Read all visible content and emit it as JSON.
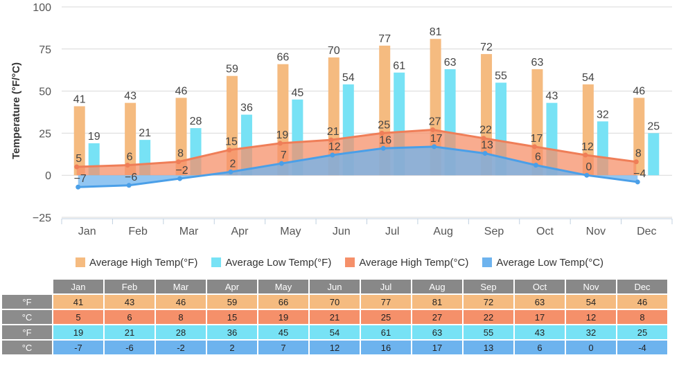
{
  "chart_data": {
    "type": "bar",
    "ylabel": "Temperature (°F/°C)",
    "ylim": [
      -25,
      100
    ],
    "yticks": [
      -25,
      0,
      25,
      50,
      75,
      100
    ],
    "categories": [
      "Jan",
      "Feb",
      "Mar",
      "Apr",
      "May",
      "Jun",
      "Jul",
      "Aug",
      "Sep",
      "Oct",
      "Nov",
      "Dec"
    ],
    "series": [
      {
        "name": "Average High Temp(°F)",
        "kind": "bar",
        "color": "#f5bb80",
        "label_color": "#444444",
        "values": [
          41,
          43,
          46,
          59,
          66,
          70,
          77,
          81,
          72,
          63,
          54,
          46
        ]
      },
      {
        "name": "Average Low Temp(°F)",
        "kind": "bar",
        "color": "#77e2f5",
        "label_color": "#444444",
        "values": [
          19,
          21,
          28,
          36,
          45,
          54,
          61,
          63,
          55,
          43,
          32,
          25
        ]
      },
      {
        "name": "Average High Temp(°C)",
        "kind": "area",
        "color": "#f5906a",
        "line_color": "#ef7e58",
        "label_color": "#444444",
        "values": [
          5,
          6,
          8,
          15,
          19,
          21,
          25,
          27,
          22,
          17,
          12,
          8
        ]
      },
      {
        "name": "Average Low Temp(°C)",
        "kind": "area",
        "color": "#6db3ee",
        "line_color": "#4a9fe8",
        "label_color": "#444444",
        "values": [
          -7,
          -6,
          -2,
          2,
          7,
          12,
          16,
          17,
          13,
          6,
          0,
          -4
        ]
      }
    ],
    "grid": true,
    "legend_position": "bottom"
  },
  "table": {
    "rows": [
      {
        "label": "°F",
        "color": "#f5bb80",
        "series": 0
      },
      {
        "label": "°C",
        "color": "#f5906a",
        "series": 2
      },
      {
        "label": "°F",
        "color": "#77e2f5",
        "series": 1
      },
      {
        "label": "°C",
        "color": "#6db3ee",
        "series": 3
      }
    ]
  }
}
